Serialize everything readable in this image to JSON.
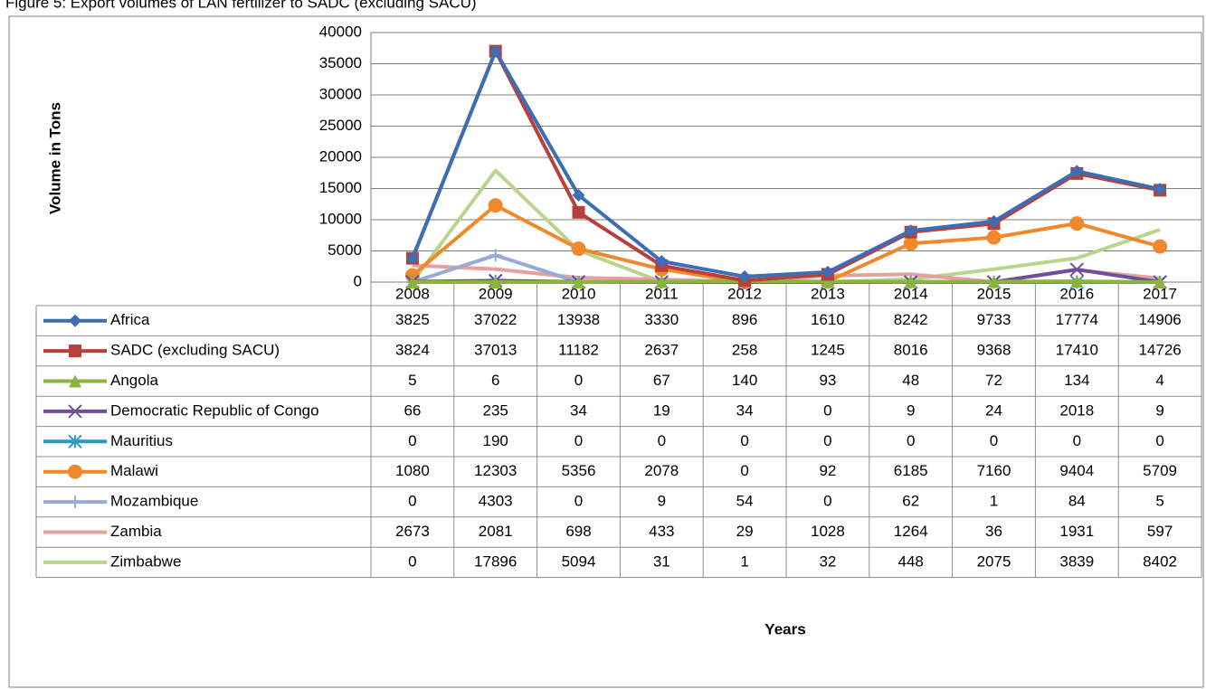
{
  "chart_data": {
    "type": "line",
    "title": "Figure 5: Export volumes of LAN fertilizer to SADC (excluding SACU)",
    "y_label": "Volume in Tons",
    "x_label": "Years",
    "categories": [
      "2008",
      "2009",
      "2010",
      "2011",
      "2012",
      "2013",
      "2014",
      "2015",
      "2016",
      "2017"
    ],
    "ylim": [
      0,
      40000
    ],
    "yticks": [
      0,
      5000,
      10000,
      15000,
      20000,
      25000,
      30000,
      35000,
      40000
    ],
    "grid": true,
    "series": [
      {
        "name": "Africa",
        "color": "#3e6db4",
        "marker": "diamond",
        "values": [
          3825,
          37022,
          13938,
          3330,
          896,
          1610,
          8242,
          9733,
          17774,
          14906
        ]
      },
      {
        "name": "SADC (excluding SACU)",
        "color": "#b8403a",
        "marker": "square",
        "values": [
          3824,
          37013,
          11182,
          2637,
          258,
          1245,
          8016,
          9368,
          17410,
          14726
        ]
      },
      {
        "name": "Angola",
        "color": "#8ab43e",
        "marker": "triangle",
        "values": [
          5,
          6,
          0,
          67,
          140,
          93,
          48,
          72,
          134,
          4
        ]
      },
      {
        "name": "Democratic Republic of Congo",
        "color": "#6e4f9b",
        "marker": "x",
        "values": [
          66,
          235,
          34,
          19,
          34,
          0,
          9,
          24,
          2018,
          9
        ]
      },
      {
        "name": "Mauritius",
        "color": "#2f9ac0",
        "marker": "asterisk",
        "values": [
          0,
          190,
          0,
          0,
          0,
          0,
          0,
          0,
          0,
          0
        ]
      },
      {
        "name": "Malawi",
        "color": "#f0892b",
        "marker": "circle",
        "values": [
          1080,
          12303,
          5356,
          2078,
          0,
          92,
          6185,
          7160,
          9404,
          5709
        ]
      },
      {
        "name": "Mozambique",
        "color": "#95abd8",
        "marker": "plus",
        "values": [
          0,
          4303,
          0,
          9,
          54,
          0,
          62,
          1,
          84,
          5
        ]
      },
      {
        "name": "Zambia",
        "color": "#e5a19d",
        "marker": "none",
        "values": [
          2673,
          2081,
          698,
          433,
          29,
          1028,
          1264,
          36,
          1931,
          597
        ]
      },
      {
        "name": "Zimbabwe",
        "color": "#b9d58c",
        "marker": "none",
        "values": [
          0,
          17896,
          5094,
          31,
          1,
          32,
          448,
          2075,
          3839,
          8402
        ]
      }
    ]
  }
}
